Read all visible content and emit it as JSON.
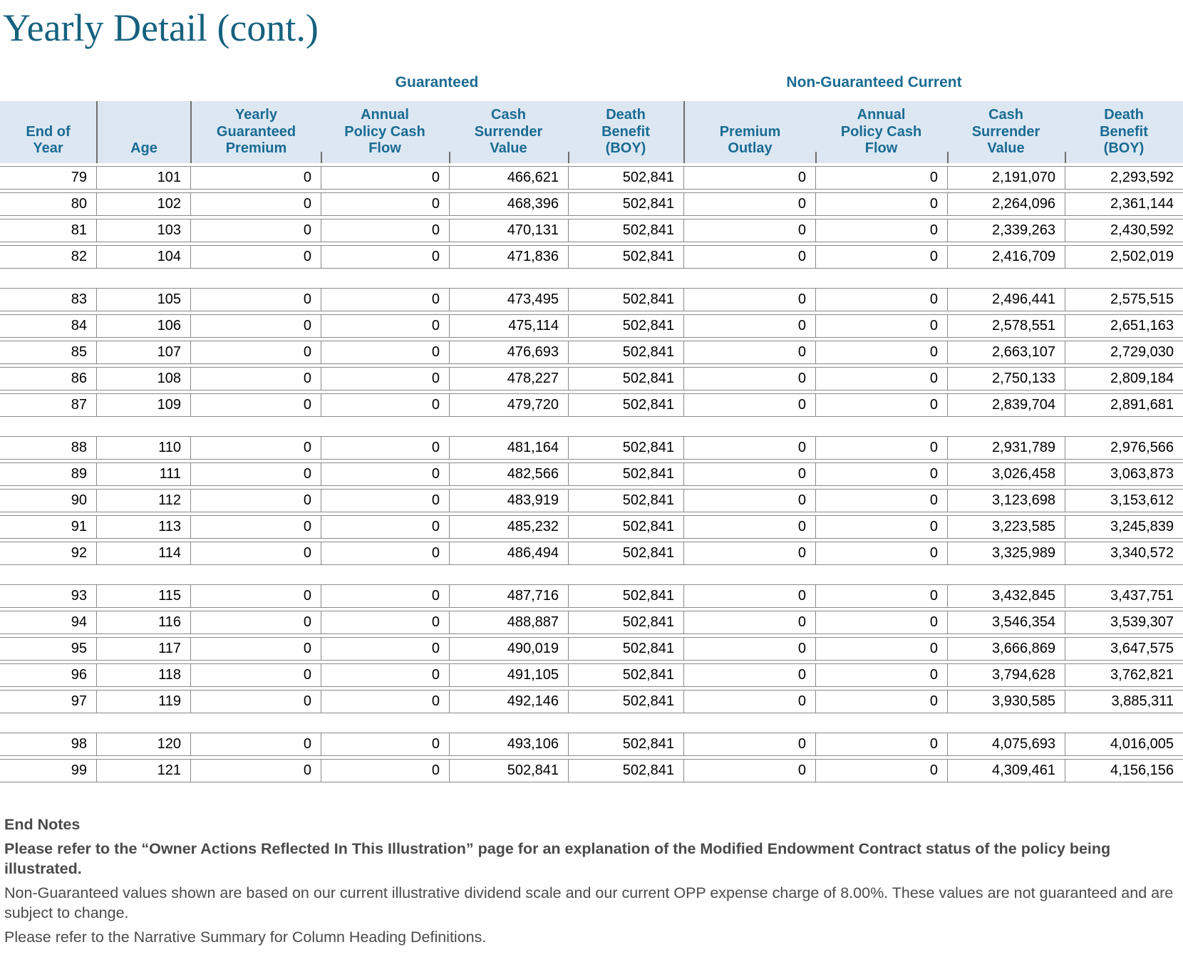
{
  "title": "Yearly Detail (cont.)",
  "colors": {
    "accent_teal": "#1A6B93",
    "header_band_background": "#DCE7F2",
    "grid_line_gray": "#8A8A8A",
    "note_text_gray": "#4A4A4A"
  },
  "table": {
    "group_headers": {
      "guaranteed": "Guaranteed",
      "non_guaranteed": "Non-Guaranteed Current"
    },
    "columns": [
      "End of\nYear",
      "Age",
      "Yearly\nGuaranteed\nPremium",
      "Annual\nPolicy Cash\nFlow",
      "Cash\nSurrender\nValue",
      "Death\nBenefit\n(BOY)",
      "Premium\nOutlay",
      "Annual\nPolicy Cash\nFlow",
      "Cash\nSurrender\nValue",
      "Death\nBenefit\n(BOY)"
    ],
    "sections": [
      {
        "rows": [
          [
            "79",
            "101",
            "0",
            "0",
            "466,621",
            "502,841",
            "0",
            "0",
            "2,191,070",
            "2,293,592"
          ],
          [
            "80",
            "102",
            "0",
            "0",
            "468,396",
            "502,841",
            "0",
            "0",
            "2,264,096",
            "2,361,144"
          ],
          [
            "81",
            "103",
            "0",
            "0",
            "470,131",
            "502,841",
            "0",
            "0",
            "2,339,263",
            "2,430,592"
          ],
          [
            "82",
            "104",
            "0",
            "0",
            "471,836",
            "502,841",
            "0",
            "0",
            "2,416,709",
            "2,502,019"
          ]
        ]
      },
      {
        "rows": [
          [
            "83",
            "105",
            "0",
            "0",
            "473,495",
            "502,841",
            "0",
            "0",
            "2,496,441",
            "2,575,515"
          ],
          [
            "84",
            "106",
            "0",
            "0",
            "475,114",
            "502,841",
            "0",
            "0",
            "2,578,551",
            "2,651,163"
          ],
          [
            "85",
            "107",
            "0",
            "0",
            "476,693",
            "502,841",
            "0",
            "0",
            "2,663,107",
            "2,729,030"
          ],
          [
            "86",
            "108",
            "0",
            "0",
            "478,227",
            "502,841",
            "0",
            "0",
            "2,750,133",
            "2,809,184"
          ],
          [
            "87",
            "109",
            "0",
            "0",
            "479,720",
            "502,841",
            "0",
            "0",
            "2,839,704",
            "2,891,681"
          ]
        ]
      },
      {
        "rows": [
          [
            "88",
            "110",
            "0",
            "0",
            "481,164",
            "502,841",
            "0",
            "0",
            "2,931,789",
            "2,976,566"
          ],
          [
            "89",
            "111",
            "0",
            "0",
            "482,566",
            "502,841",
            "0",
            "0",
            "3,026,458",
            "3,063,873"
          ],
          [
            "90",
            "112",
            "0",
            "0",
            "483,919",
            "502,841",
            "0",
            "0",
            "3,123,698",
            "3,153,612"
          ],
          [
            "91",
            "113",
            "0",
            "0",
            "485,232",
            "502,841",
            "0",
            "0",
            "3,223,585",
            "3,245,839"
          ],
          [
            "92",
            "114",
            "0",
            "0",
            "486,494",
            "502,841",
            "0",
            "0",
            "3,325,989",
            "3,340,572"
          ]
        ]
      },
      {
        "rows": [
          [
            "93",
            "115",
            "0",
            "0",
            "487,716",
            "502,841",
            "0",
            "0",
            "3,432,845",
            "3,437,751"
          ],
          [
            "94",
            "116",
            "0",
            "0",
            "488,887",
            "502,841",
            "0",
            "0",
            "3,546,354",
            "3,539,307"
          ],
          [
            "95",
            "117",
            "0",
            "0",
            "490,019",
            "502,841",
            "0",
            "0",
            "3,666,869",
            "3,647,575"
          ],
          [
            "96",
            "118",
            "0",
            "0",
            "491,105",
            "502,841",
            "0",
            "0",
            "3,794,628",
            "3,762,821"
          ],
          [
            "97",
            "119",
            "0",
            "0",
            "492,146",
            "502,841",
            "0",
            "0",
            "3,930,585",
            "3,885,311"
          ]
        ]
      },
      {
        "rows": [
          [
            "98",
            "120",
            "0",
            "0",
            "493,106",
            "502,841",
            "0",
            "0",
            "4,075,693",
            "4,016,005"
          ],
          [
            "99",
            "121",
            "0",
            "0",
            "502,841",
            "502,841",
            "0",
            "0",
            "4,309,461",
            "4,156,156"
          ]
        ]
      }
    ]
  },
  "end_notes": {
    "heading": "End Notes",
    "notes": [
      "Please refer to the “Owner Actions Reflected In This Illustration” page for an explanation of the Modified Endowment Contract status of the policy being illustrated.",
      "Non-Guaranteed values shown are based on our current illustrative dividend scale and our current OPP expense charge of 8.00%.  These values are not guaranteed and are subject to change.",
      "Please refer to the Narrative Summary for Column Heading Definitions."
    ]
  }
}
